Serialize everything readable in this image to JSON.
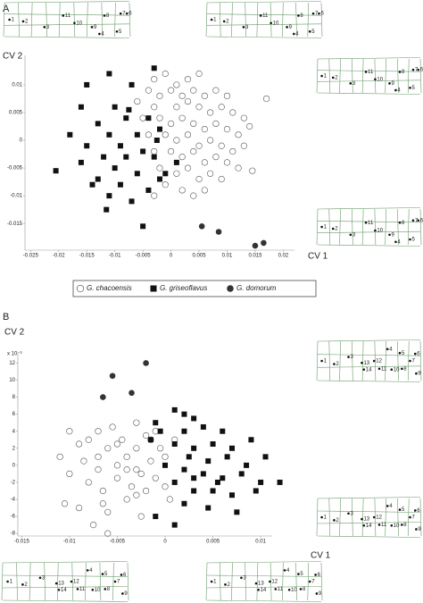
{
  "chart_data": [
    {
      "type": "scatter",
      "panel": "A",
      "xlabel": "CV 1",
      "ylabel": "CV 2",
      "xlim": [
        -0.026,
        0.022
      ],
      "ylim": [
        -0.0198,
        0.0153
      ],
      "xticks": [
        -0.025,
        -0.02,
        -0.015,
        -0.01,
        -0.005,
        0,
        0.005,
        0.01,
        0.015,
        0.02
      ],
      "yticks": [
        -0.015,
        -0.01,
        -0.005,
        0,
        0.005,
        0.01
      ],
      "series": [
        {
          "name": "G. chacoensis",
          "marker": "circle-open",
          "color": "#555555",
          "x": [
            -0.003,
            -0.001,
            0.001,
            0.003,
            0.005,
            -0.004,
            -0.002,
            0,
            0.002,
            0.004,
            0.006,
            0.008,
            0.01,
            -0.006,
            -0.003,
            0.001,
            0.003,
            0.005,
            0.007,
            0.009,
            0.011,
            0.013,
            -0.005,
            -0.002,
            0,
            0.002,
            0.004,
            0.006,
            0.008,
            0.01,
            0.012,
            -0.004,
            -0.001,
            0.001,
            0.003,
            0.005,
            0.007,
            0.009,
            0.011,
            0.013,
            -0.003,
            0,
            0.002,
            0.004,
            0.006,
            0.008,
            0.01,
            0.012,
            -0.002,
            0.001,
            0.003,
            0.005,
            0.007,
            0.009,
            -0.001,
            0.002,
            0.004,
            0.006,
            -0.003,
            0.017,
            0.014,
            0.0145
          ],
          "y": [
            0.011,
            0.012,
            0.01,
            0.011,
            0.012,
            0.009,
            0.008,
            0.009,
            0.008,
            0.009,
            0.008,
            0.009,
            0.008,
            0.007,
            0.006,
            0.006,
            0.007,
            0.006,
            0.005,
            0.006,
            0.005,
            0.004,
            0.004,
            0.004,
            0.003,
            0.004,
            0.003,
            0.002,
            0.003,
            0.002,
            0.001,
            0.001,
            0.001,
            0,
            0.001,
            -0.001,
            0,
            -0.001,
            -0.002,
            -0.001,
            -0.002,
            -0.002,
            -0.003,
            -0.002,
            -0.004,
            -0.003,
            -0.004,
            -0.005,
            -0.005,
            -0.006,
            -0.005,
            -0.007,
            -0.006,
            -0.007,
            -0.008,
            -0.009,
            -0.01,
            -0.009,
            -0.01,
            0.0075,
            0.0025,
            -0.0055
          ]
        },
        {
          "name": "G. griseoflavus",
          "marker": "square",
          "color": "#111111",
          "x": [
            -0.011,
            -0.003,
            -0.015,
            -0.007,
            -0.016,
            -0.01,
            -0.013,
            -0.008,
            -0.004,
            -0.018,
            -0.011,
            -0.006,
            -0.002,
            -0.0025,
            -0.015,
            -0.009,
            -0.005,
            -0.0205,
            -0.012,
            -0.008,
            -0.003,
            -0.016,
            -0.01,
            -0.006,
            -0.001,
            -0.013,
            -0.009,
            -0.004,
            -0.011,
            -0.007,
            -0.0115,
            -0.005,
            -0.002,
            -0.014,
            0.001,
            -0.0075
          ],
          "y": [
            0.012,
            0.013,
            0.01,
            0.01,
            0.006,
            0.006,
            0.003,
            0.004,
            0.004,
            0.001,
            0.001,
            0.001,
            0.002,
            0,
            -0.001,
            -0.001,
            -0.002,
            -0.0055,
            -0.003,
            -0.003,
            -0.003,
            -0.004,
            -0.005,
            -0.006,
            -0.006,
            -0.007,
            -0.008,
            -0.009,
            -0.01,
            -0.011,
            -0.0125,
            -0.0155,
            -0.007,
            -0.008,
            -0.004,
            0.0055
          ]
        },
        {
          "name": "G. domorum",
          "marker": "circle",
          "color": "#333333",
          "x": [
            0.0055,
            0.0085,
            0.015,
            0.0165
          ],
          "y": [
            -0.0155,
            -0.0165,
            -0.019,
            -0.0185
          ]
        }
      ]
    },
    {
      "type": "scatter",
      "panel": "B",
      "xlabel": "CV 1",
      "ylabel": "CV 2",
      "yscale_label": "x 10⁻³",
      "xlim": [
        -0.0154,
        0.0112
      ],
      "ylim": [
        -8.3,
        13.2
      ],
      "xticks": [
        -0.015,
        -0.01,
        -0.005,
        0,
        0.005,
        0.01
      ],
      "yticks": [
        -8,
        -6,
        -4,
        -2,
        0,
        2,
        4,
        6,
        8,
        10,
        12
      ],
      "series": [
        {
          "marker": "circle-open",
          "color": "#555555",
          "x": [
            -0.011,
            -0.01,
            -0.0105,
            -0.01,
            -0.009,
            -0.008,
            -0.008,
            -0.0075,
            -0.007,
            -0.007,
            -0.007,
            -0.0065,
            -0.006,
            -0.006,
            -0.0055,
            -0.005,
            -0.005,
            -0.0045,
            -0.004,
            -0.004,
            -0.0035,
            -0.003,
            -0.003,
            -0.003,
            -0.0025,
            -0.002,
            -0.002,
            -0.0015,
            -0.001,
            -0.001,
            -0.0005,
            0,
            0,
            0.0005,
            -0.006,
            -0.009,
            -0.0085,
            -0.0065,
            -0.005,
            -0.004,
            -0.003,
            -0.0015,
            0.001,
            -0.0025
          ],
          "y": [
            1,
            -1,
            -4.5,
            4,
            2.5,
            3,
            -2,
            -7,
            4,
            1,
            -0.5,
            -3,
            -5.5,
            2,
            4.5,
            0,
            -1.5,
            3,
            -4,
            1,
            -2.5,
            5,
            2,
            -0.5,
            -6,
            3.5,
            -3,
            0.5,
            -1.5,
            4,
            2,
            -2.5,
            1,
            -4,
            -8,
            -5,
            0.5,
            -4.5,
            2.5,
            -0.5,
            -3.5,
            3,
            3,
            -1
          ]
        },
        {
          "marker": "square",
          "color": "#111111",
          "x": [
            0.001,
            0.003,
            -0.001,
            0.002,
            0.004,
            0.006,
            -0.0015,
            0.001,
            0.003,
            0.005,
            0.007,
            0.009,
            0.0025,
            0.0045,
            0.0065,
            0.0085,
            0.0105,
            0,
            0.002,
            0.004,
            0.006,
            0.008,
            0.01,
            0.012,
            0.001,
            0.003,
            0.005,
            0.007,
            0.0095,
            0.002,
            0.0045,
            0.0075,
            -0.001,
            0.001,
            0.003,
            0.0055,
            -0.0005,
            0.002
          ],
          "y": [
            6.5,
            5.5,
            5,
            4,
            4.5,
            4,
            3,
            2.5,
            2,
            2.5,
            2,
            3,
            1,
            0.5,
            1,
            0,
            1,
            0,
            -0.5,
            -1,
            -1.5,
            -1,
            -2,
            -2,
            -2,
            -3,
            -3,
            -3.5,
            -3,
            -4.5,
            -5,
            -5.5,
            -6,
            -7,
            -1.5,
            -2,
            4,
            6
          ]
        },
        {
          "marker": "circle",
          "color": "#333333",
          "x": [
            -0.0055,
            -0.0065,
            -0.0035,
            -0.002
          ],
          "y": [
            10.5,
            8,
            8.5,
            12
          ]
        }
      ]
    }
  ],
  "diagrams": [
    {
      "points": [
        "1",
        "2",
        "3",
        "11",
        "10",
        "9",
        "4",
        "8",
        "7",
        "6",
        "5"
      ]
    },
    {
      "points": [
        "1",
        "2",
        "3",
        "11",
        "10",
        "9",
        "4",
        "8",
        "7",
        "6",
        "5"
      ]
    },
    {
      "points": [
        "1",
        "2",
        "3",
        "11",
        "10",
        "9",
        "4",
        "8",
        "7",
        "6",
        "5"
      ]
    },
    {
      "points": [
        "1",
        "2",
        "3",
        "11",
        "10",
        "9",
        "4",
        "8",
        "7",
        "6",
        "5"
      ]
    },
    {
      "points": [
        "1",
        "2",
        "3",
        "13",
        "14",
        "12",
        "11",
        "10",
        "4",
        "5",
        "6",
        "7",
        "8",
        "9"
      ]
    },
    {
      "points": [
        "1",
        "2",
        "3",
        "13",
        "14",
        "12",
        "11",
        "10",
        "4",
        "5",
        "6",
        "7",
        "8",
        "9"
      ]
    },
    {
      "points": [
        "1",
        "2",
        "3",
        "13",
        "14",
        "12",
        "11",
        "10",
        "4",
        "5",
        "6",
        "7",
        "8",
        "9"
      ]
    },
    {
      "points": [
        "1",
        "2",
        "3",
        "13",
        "14",
        "12",
        "11",
        "10",
        "4",
        "5",
        "6",
        "7",
        "8",
        "9"
      ]
    }
  ]
}
